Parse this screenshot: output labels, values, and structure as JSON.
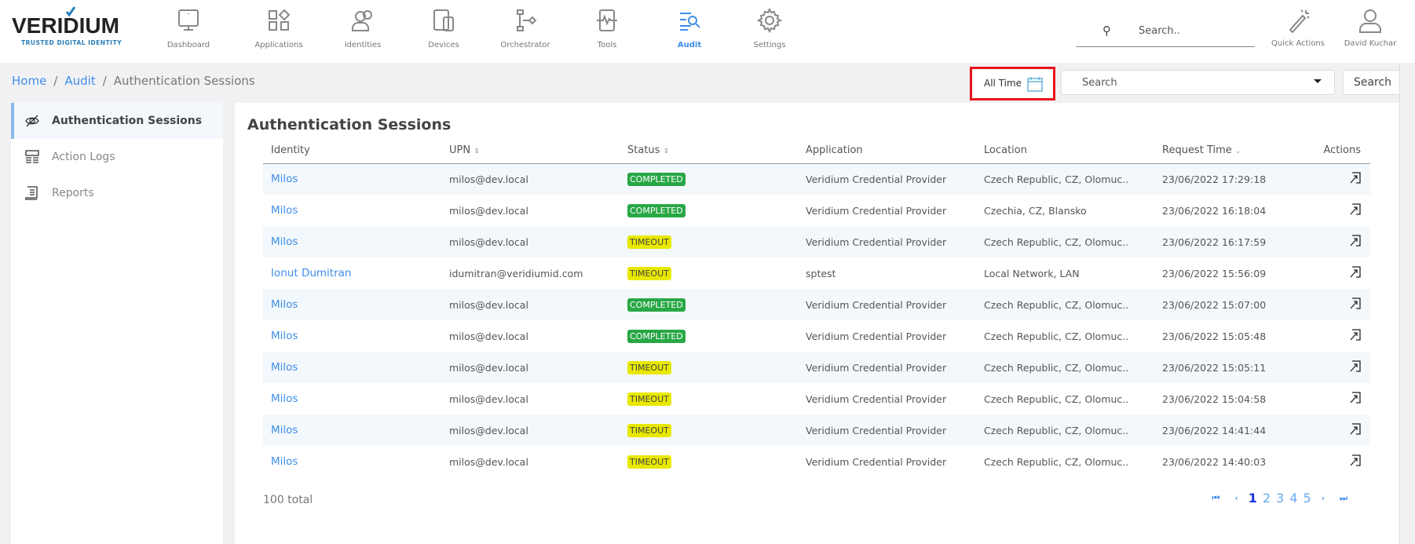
{
  "brand": {
    "name": "VERIDIUM",
    "tagline": "TRUSTED DIGITAL IDENTITY"
  },
  "nav": [
    {
      "label": "Dashboard",
      "icon": "monitor-icon"
    },
    {
      "label": "Applications",
      "icon": "apps-grid-icon"
    },
    {
      "label": "Identities",
      "icon": "users-icon"
    },
    {
      "label": "Devices",
      "icon": "devices-icon"
    },
    {
      "label": "Orchestrator",
      "icon": "flow-icon"
    },
    {
      "label": "Tools",
      "icon": "pulse-tablet-icon"
    },
    {
      "label": "Audit",
      "icon": "audit-search-icon",
      "active": true
    },
    {
      "label": "Settings",
      "icon": "gear-icon"
    }
  ],
  "header": {
    "search_placeholder": "Search..",
    "quick_actions": "Quick Actions",
    "user": "David Kuchar"
  },
  "breadcrumb": [
    "Home",
    "Audit",
    "Authentication Sessions"
  ],
  "filters": {
    "time_range": "All Time",
    "search_select": "Search",
    "search_button": "Search"
  },
  "sidebar": [
    {
      "label": "Authentication Sessions",
      "icon": "eye-slash-icon",
      "active": true
    },
    {
      "label": "Action Logs",
      "icon": "log-list-icon"
    },
    {
      "label": "Reports",
      "icon": "report-icon"
    }
  ],
  "main": {
    "title": "Authentication Sessions",
    "columns": [
      "Identity",
      "UPN",
      "Status",
      "Application",
      "Location",
      "Request Time",
      "Actions"
    ],
    "rows": [
      {
        "identity": "Milos",
        "upn": "milos@dev.local",
        "status": "COMPLETED",
        "application": "Veridium Credential Provider",
        "location": "Czech Republic, CZ, Olomuc..",
        "time": "23/06/2022 17:29:18"
      },
      {
        "identity": "Milos",
        "upn": "milos@dev.local",
        "status": "COMPLETED",
        "application": "Veridium Credential Provider",
        "location": "Czechia, CZ, Blansko",
        "time": "23/06/2022 16:18:04"
      },
      {
        "identity": "Milos",
        "upn": "milos@dev.local",
        "status": "TIMEOUT",
        "application": "Veridium Credential Provider",
        "location": "Czech Republic, CZ, Olomuc..",
        "time": "23/06/2022 16:17:59"
      },
      {
        "identity": "Ionut Dumitran",
        "upn": "idumitran@veridiumid.com",
        "status": "TIMEOUT",
        "application": "sptest",
        "location": "Local Network, LAN",
        "time": "23/06/2022 15:56:09"
      },
      {
        "identity": "Milos",
        "upn": "milos@dev.local",
        "status": "COMPLETED",
        "application": "Veridium Credential Provider",
        "location": "Czech Republic, CZ, Olomuc..",
        "time": "23/06/2022 15:07:00"
      },
      {
        "identity": "Milos",
        "upn": "milos@dev.local",
        "status": "COMPLETED",
        "application": "Veridium Credential Provider",
        "location": "Czech Republic, CZ, Olomuc..",
        "time": "23/06/2022 15:05:48"
      },
      {
        "identity": "Milos",
        "upn": "milos@dev.local",
        "status": "TIMEOUT",
        "application": "Veridium Credential Provider",
        "location": "Czech Republic, CZ, Olomuc..",
        "time": "23/06/2022 15:05:11"
      },
      {
        "identity": "Milos",
        "upn": "milos@dev.local",
        "status": "TIMEOUT",
        "application": "Veridium Credential Provider",
        "location": "Czech Republic, CZ, Olomuc..",
        "time": "23/06/2022 15:04:58"
      },
      {
        "identity": "Milos",
        "upn": "milos@dev.local",
        "status": "TIMEOUT",
        "application": "Veridium Credential Provider",
        "location": "Czech Republic, CZ, Olomuc..",
        "time": "23/06/2022 14:41:44"
      },
      {
        "identity": "Milos",
        "upn": "milos@dev.local",
        "status": "TIMEOUT",
        "application": "Veridium Credential Provider",
        "location": "Czech Republic, CZ, Olomuc..",
        "time": "23/06/2022 14:40:03"
      }
    ],
    "total": "100 total",
    "pages": [
      "1",
      "2",
      "3",
      "4",
      "5"
    ],
    "current_page": "1"
  },
  "colors": {
    "accent": "#3e8ee8",
    "completed": "#28a745",
    "timeout": "#e8e800",
    "highlight": "#e8121b"
  }
}
